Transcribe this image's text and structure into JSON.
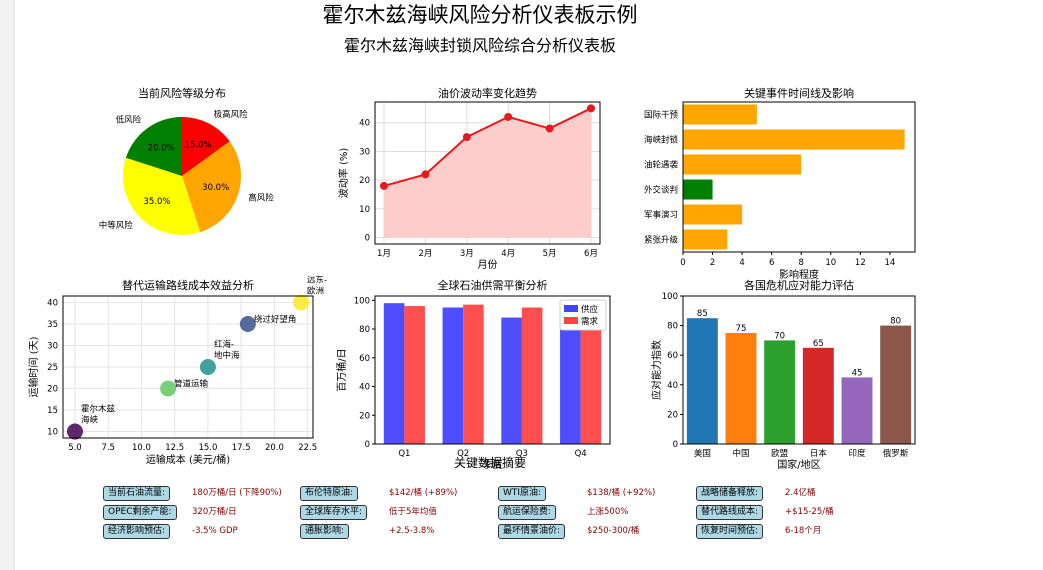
{
  "title": "霍尔木兹海峡风险分析仪表板示例",
  "subtitle": "霍尔木兹海峡封锁风险综合分析仪表板",
  "colors": {
    "red": "#ff0000",
    "orange": "#ffa500",
    "yellow": "#ffff00",
    "green": "#008000",
    "line": "#e41a1c",
    "fill": "#ffcccc",
    "supply": "#4444ff",
    "demand": "#ff4444"
  },
  "chart_data": [
    {
      "type": "pie",
      "title": "当前风险等级分布",
      "labels": [
        "极高风险",
        "高风险",
        "中等风险",
        "低风险"
      ],
      "values": [
        15.0,
        30.0,
        35.0,
        20.0
      ],
      "pct_labels": [
        "15.0%",
        "30.0%",
        "35.0%",
        "20.0%"
      ],
      "colors": [
        "#ff0000",
        "#ffa500",
        "#ffff00",
        "#008000"
      ]
    },
    {
      "type": "area",
      "title": "油价波动率变化趋势",
      "xlabel": "月份",
      "ylabel": "波动率 (%)",
      "categories": [
        "1月",
        "2月",
        "3月",
        "4月",
        "5月",
        "6月"
      ],
      "values": [
        18,
        22,
        35,
        42,
        38,
        45
      ],
      "ylim": [
        0,
        45
      ],
      "yticks": [
        0,
        10,
        20,
        30,
        40
      ],
      "grid": true
    },
    {
      "type": "bar",
      "orientation": "horizontal",
      "title": "关键事件时间线及影响",
      "xlabel": "影响程度",
      "categories": [
        "紧张升级",
        "军事演习",
        "外交谈判",
        "油轮遇袭",
        "海峡封锁",
        "国际干预"
      ],
      "values": [
        3,
        4,
        2,
        8,
        15,
        5
      ],
      "colors": [
        "#ffa500",
        "#ffa500",
        "#008000",
        "#ffa500",
        "#ffa500",
        "#ffa500"
      ],
      "xlim": [
        0,
        15
      ],
      "xticks": [
        0,
        2,
        4,
        6,
        8,
        10,
        12,
        14
      ]
    },
    {
      "type": "scatter",
      "title": "替代运输路线成本效益分析",
      "xlabel": "运输成本 (美元/桶)",
      "ylabel": "运输时间 (天)",
      "points": [
        {
          "label": "霍尔木兹\n海峡",
          "x": 5,
          "y": 10,
          "color": "#440154"
        },
        {
          "label": "管道运输",
          "x": 12,
          "y": 20,
          "color": "#5ec962"
        },
        {
          "label": "红海-\n地中海",
          "x": 15,
          "y": 25,
          "color": "#21918c"
        },
        {
          "label": "绕过好望角",
          "x": 18,
          "y": 35,
          "color": "#3b528b"
        },
        {
          "label": "远东-\n欧洲",
          "x": 22,
          "y": 40,
          "color": "#fde725"
        }
      ],
      "xlim": [
        5,
        22.5
      ],
      "ylim": [
        10,
        40
      ],
      "xticks": [
        "5.0",
        "7.5",
        "10.0",
        "12.5",
        "15.0",
        "17.5",
        "20.0",
        "22.5"
      ],
      "yticks": [
        10,
        15,
        20,
        25,
        30,
        35,
        40
      ],
      "grid": true
    },
    {
      "type": "bar",
      "title": "全球石油供需平衡分析",
      "xlabel": "季度",
      "ylabel": "百万桶/日",
      "categories": [
        "Q1",
        "Q2",
        "Q3",
        "Q4"
      ],
      "series": [
        {
          "name": "供应",
          "values": [
            98,
            95,
            88,
            92
          ]
        },
        {
          "name": "需求",
          "values": [
            96,
            97,
            95,
            94
          ]
        }
      ],
      "ylim": [
        0,
        100
      ],
      "yticks": [
        0,
        20,
        40,
        60,
        80,
        100
      ],
      "legend": "top-right"
    },
    {
      "type": "bar",
      "title": "各国危机应对能力评估",
      "xlabel": "国家/地区",
      "ylabel": "应对能力指数",
      "categories": [
        "美国",
        "中国",
        "欧盟",
        "日本",
        "印度",
        "俄罗斯"
      ],
      "values": [
        85,
        75,
        70,
        65,
        45,
        80
      ],
      "colors": [
        "#1f77b4",
        "#ff7f0e",
        "#2ca02c",
        "#d62728",
        "#9467bd",
        "#8c564b"
      ],
      "ylim": [
        0,
        100
      ],
      "yticks": [
        0,
        20,
        40,
        60,
        80,
        100
      ]
    }
  ],
  "summary": {
    "title": "关键数据摘要",
    "items": [
      {
        "label": "当前石油流量:",
        "value": "180万桶/日 (下降90%)"
      },
      {
        "label": "布伦特原油:",
        "value": "$142/桶 (+89%)"
      },
      {
        "label": "WTI原油:",
        "value": "$138/桶 (+92%)"
      },
      {
        "label": "战略储备释放:",
        "value": "2.4亿桶"
      },
      {
        "label": "OPEC剩余产能:",
        "value": "320万桶/日"
      },
      {
        "label": "全球库存水平:",
        "value": "低于5年均值"
      },
      {
        "label": "航运保险费:",
        "value": "上涨500%"
      },
      {
        "label": "替代路线成本:",
        "value": "+$15-25/桶"
      },
      {
        "label": "经济影响预估:",
        "value": "-3.5% GDP"
      },
      {
        "label": "通胀影响:",
        "value": "+2.5-3.8%"
      },
      {
        "label": "最坏情景油价:",
        "value": "$250-300/桶"
      },
      {
        "label": "恢复时间预估:",
        "value": "6-18个月"
      }
    ]
  }
}
